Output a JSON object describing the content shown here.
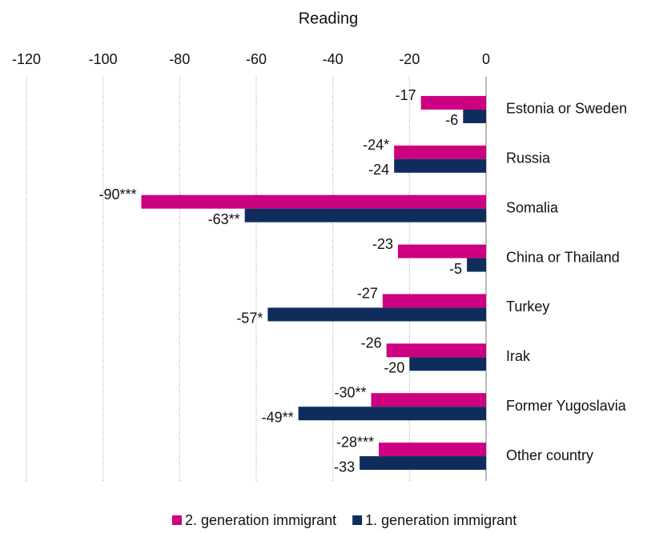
{
  "chart_data": {
    "type": "bar",
    "orientation": "horizontal",
    "title": "Reading",
    "categories": [
      "Estonia or Sweden",
      "Russia",
      "Somalia",
      "China or Thailand",
      "Turkey",
      "Irak",
      "Former Yugoslavia",
      "Other country"
    ],
    "series": [
      {
        "name": "2. generation immigrant",
        "color": "#cc0080",
        "values": [
          -17,
          -24,
          -90,
          -23,
          -27,
          -26,
          -30,
          -28
        ],
        "value_labels": [
          "-17",
          "-24*",
          "-90***",
          "-23",
          "-27",
          "-26",
          "-30**",
          "-28***"
        ]
      },
      {
        "name": "1. generation immigrant",
        "color": "#0f2d5c",
        "values": [
          -6,
          -24,
          -63,
          -5,
          -57,
          -20,
          -49,
          -33
        ],
        "value_labels": [
          "-6",
          "-24",
          "-63**",
          "-5",
          "-57*",
          "-20",
          "-49**",
          "-33"
        ]
      }
    ],
    "xlim": [
      -120,
      0
    ],
    "xticks": [
      -120,
      -100,
      -80,
      -60,
      -40,
      -20,
      0
    ],
    "grid": true,
    "legend": "bottom"
  }
}
